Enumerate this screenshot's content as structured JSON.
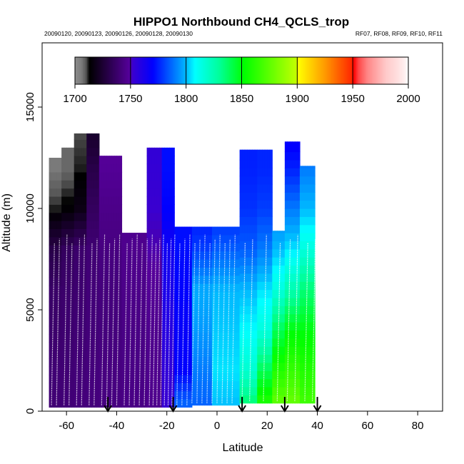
{
  "chart_data": {
    "type": "heatmap",
    "title": "HIPPO1 Northbound CH4_QCLS_trop",
    "subtitle_left": "20090120, 20090123, 20090126, 20090128, 20090130",
    "subtitle_right": "RF07, RF08, RF09, RF10, RF11",
    "xlabel": "Latitude",
    "ylabel": "Altitude (m)",
    "xlim": [
      -70,
      90
    ],
    "ylim": [
      0,
      18000
    ],
    "x_ticks": [
      -60,
      -40,
      -20,
      0,
      20,
      40,
      60,
      80
    ],
    "x_tick_labels": [
      "-60",
      "-40",
      "-20",
      "0",
      "20",
      "40",
      "60",
      "80"
    ],
    "y_ticks": [
      0,
      5000,
      10000,
      15000
    ],
    "y_tick_labels": [
      "0",
      "5000",
      "10000",
      "15000"
    ],
    "colorbar": {
      "range": [
        1700,
        2000
      ],
      "ticks": [
        1700,
        1750,
        1800,
        1850,
        1900,
        1950,
        2000
      ],
      "tick_labels": [
        "1700",
        "1750",
        "1800",
        "1850",
        "1900",
        "1950",
        "2000"
      ],
      "stops": [
        [
          1700,
          "#8c8c8c"
        ],
        [
          1706,
          "#7a7a7a"
        ],
        [
          1710,
          "#555555"
        ],
        [
          1713,
          "#000000"
        ],
        [
          1749,
          "#55009a"
        ],
        [
          1752,
          "#3a00d0"
        ],
        [
          1770,
          "#0000ff"
        ],
        [
          1800,
          "#00b8ff"
        ],
        [
          1808,
          "#00ffff"
        ],
        [
          1830,
          "#00ff99"
        ],
        [
          1852,
          "#00ff00"
        ],
        [
          1899,
          "#c0ff00"
        ],
        [
          1901,
          "#ffff00"
        ],
        [
          1925,
          "#ff9900"
        ],
        [
          1949,
          "#ff2800"
        ],
        [
          1951,
          "#ff0000"
        ],
        [
          1955,
          "#ff4545"
        ],
        [
          1963,
          "#ff8585"
        ],
        [
          1972,
          "#ffaaaa"
        ],
        [
          1980,
          "#ffcaca"
        ],
        [
          1989,
          "#ffdcdc"
        ],
        [
          1996,
          "#ffeeee"
        ],
        [
          2000,
          "#ffffff"
        ]
      ]
    },
    "profile_levels_m": [
      0,
      2000,
      4000,
      6000,
      8000,
      10000,
      12000,
      14000
    ],
    "columns": [
      {
        "lat": [
          -67,
          -62
        ],
        "bottom": 200,
        "top": 12500,
        "values": [
          1740,
          1740,
          1738,
          1737,
          1730,
          1712,
          1706,
          1706
        ]
      },
      {
        "lat": [
          -62,
          -57
        ],
        "bottom": 200,
        "top": 13000,
        "values": [
          1741,
          1740,
          1739,
          1738,
          1735,
          1714,
          1708,
          1708
        ]
      },
      {
        "lat": [
          -57,
          -52
        ],
        "bottom": 200,
        "top": 13700,
        "values": [
          1742,
          1741,
          1740,
          1739,
          1738,
          1718,
          1712,
          1710
        ]
      },
      {
        "lat": [
          -52,
          -47
        ],
        "bottom": 200,
        "top": 13700,
        "values": [
          1742,
          1742,
          1741,
          1741,
          1740,
          1735,
          1730,
          1722
        ]
      },
      {
        "lat": [
          -47,
          -38
        ],
        "bottom": 200,
        "top": 12600,
        "values": [
          1743,
          1743,
          1742,
          1742,
          1743,
          1745,
          1748,
          1750
        ]
      },
      {
        "lat": [
          -38,
          -28
        ],
        "bottom": 200,
        "top": 8800,
        "values": [
          1744,
          1744,
          1744,
          1745,
          1746,
          1747,
          1747,
          1747
        ]
      },
      {
        "lat": [
          -28,
          -22
        ],
        "bottom": 200,
        "top": 13000,
        "values": [
          1746,
          1746,
          1746,
          1748,
          1750,
          1752,
          1754,
          1755
        ]
      },
      {
        "lat": [
          -22,
          -17
        ],
        "bottom": 200,
        "top": 13000,
        "values": [
          1752,
          1755,
          1758,
          1762,
          1765,
          1770,
          1772,
          1772
        ]
      },
      {
        "lat": [
          -17,
          -10
        ],
        "bottom": 200,
        "top": 9100,
        "values": [
          1790,
          1770,
          1768,
          1770,
          1772,
          1772,
          1772,
          1772
        ]
      },
      {
        "lat": [
          -10,
          -2
        ],
        "bottom": 300,
        "top": 9100,
        "values": [
          1785,
          1790,
          1795,
          1798,
          1780,
          1772,
          1772,
          1772
        ]
      },
      {
        "lat": [
          -2,
          9
        ],
        "bottom": 300,
        "top": 9100,
        "values": [
          1800,
          1805,
          1802,
          1800,
          1785,
          1775,
          1775,
          1775
        ]
      },
      {
        "lat": [
          9,
          16
        ],
        "bottom": 400,
        "top": 12900,
        "values": [
          1840,
          1818,
          1808,
          1800,
          1785,
          1778,
          1775,
          1775
        ]
      },
      {
        "lat": [
          16,
          22
        ],
        "bottom": 400,
        "top": 12900,
        "values": [
          1865,
          1840,
          1815,
          1805,
          1790,
          1780,
          1776,
          1776
        ]
      },
      {
        "lat": [
          22,
          27
        ],
        "bottom": 400,
        "top": 8900,
        "values": [
          1880,
          1860,
          1840,
          1815,
          1800,
          1790,
          1790,
          1790
        ]
      },
      {
        "lat": [
          27,
          33
        ],
        "bottom": 400,
        "top": 13300,
        "values": [
          1880,
          1865,
          1850,
          1825,
          1805,
          1790,
          1775,
          1765
        ]
      },
      {
        "lat": [
          33,
          39
        ],
        "bottom": 400,
        "top": 12100,
        "values": [
          1870,
          1860,
          1850,
          1835,
          1815,
          1800,
          1790,
          1790
        ]
      }
    ],
    "flight_boundary_arrows_lat": [
      -43.5,
      -17.5,
      10,
      27,
      40
    ],
    "profile_track_lats": [
      -66,
      -64,
      -61,
      -59,
      -56,
      -54,
      -51,
      -49,
      -46,
      -44,
      -42,
      -40,
      -37,
      -35,
      -33,
      -31,
      -29,
      -27,
      -25.5,
      -24,
      -22.5,
      -21,
      -19.5,
      -18,
      -16,
      -14,
      -12,
      -10,
      -8,
      -6,
      -4,
      -2,
      0,
      2,
      4,
      6,
      10,
      13,
      18.5,
      24,
      28,
      31,
      35,
      38
    ]
  }
}
